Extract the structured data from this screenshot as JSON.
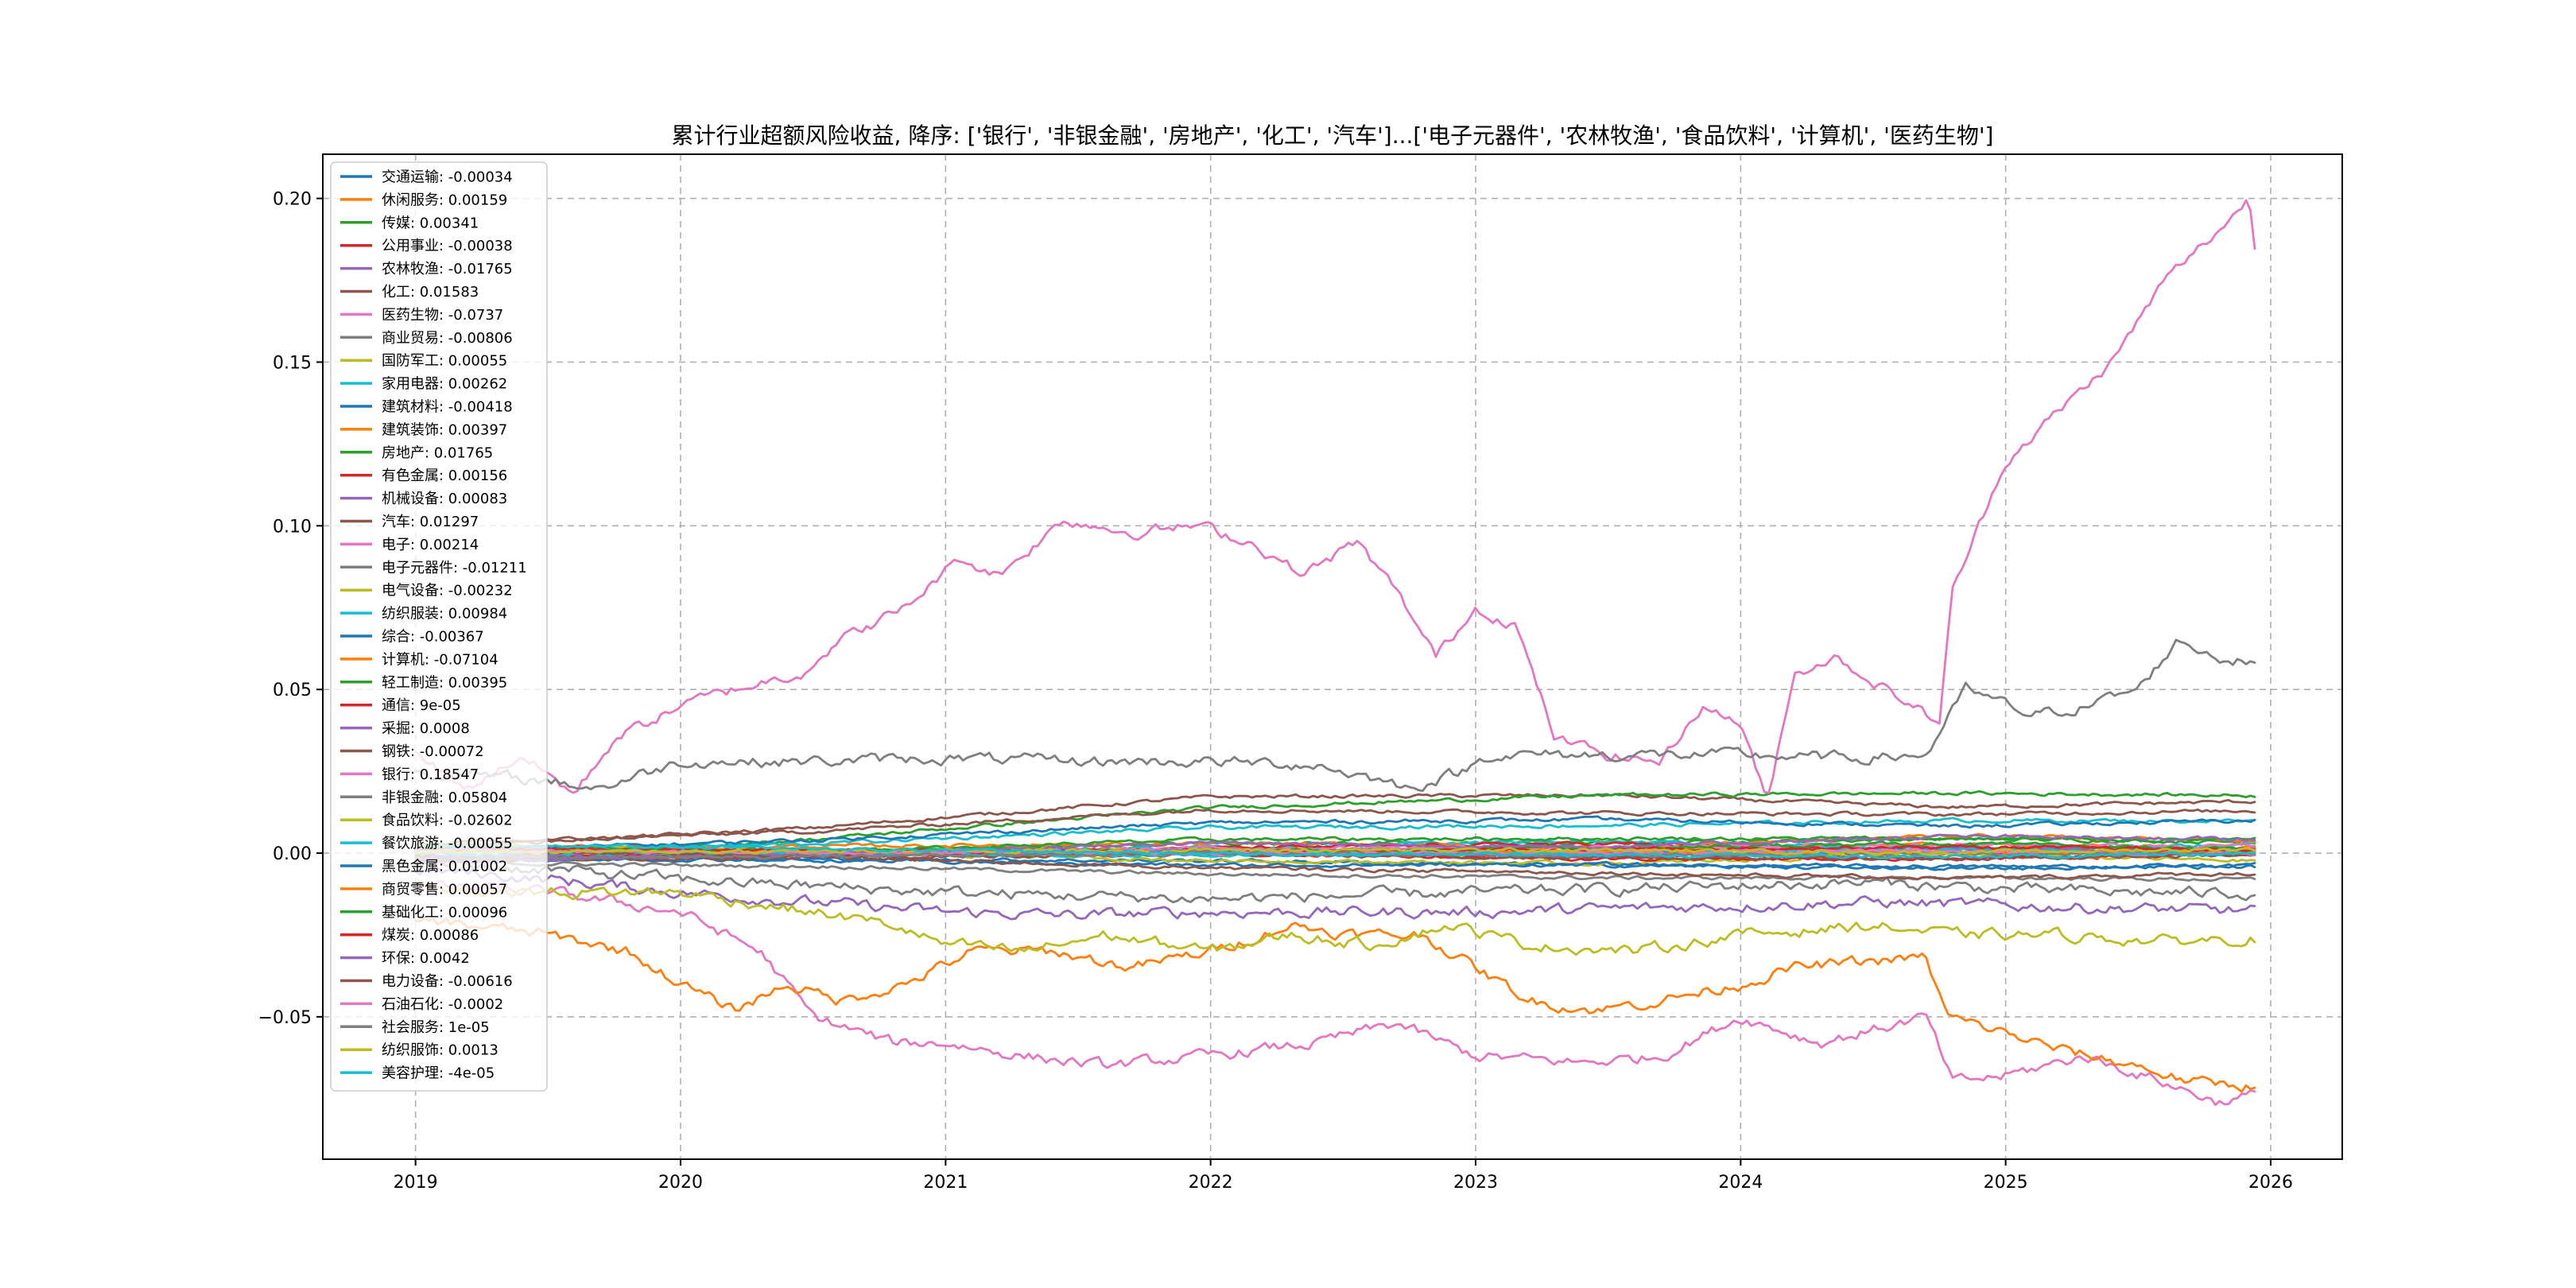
{
  "chart_data": {
    "type": "line",
    "title": "累计行业超额风险收益,  降序: ['银行', '非银金融', '房地产', '化工', '汽车']...['电子元器件', '农林牧渔', '食品饮料', '计算机', '医药生物']",
    "xlabel": "",
    "ylabel": "",
    "x_ticks": [
      "2019",
      "2020",
      "2021",
      "2022",
      "2023",
      "2024",
      "2025",
      "2026"
    ],
    "y_ticks": [
      "−0.05",
      "0.00",
      "0.05",
      "0.10",
      "0.15",
      "0.20"
    ],
    "xlim": [
      2018.65,
      2026.27
    ],
    "ylim": [
      -0.0935,
      0.2135
    ],
    "grid": true,
    "legend_position": "upper-left",
    "series": [
      {
        "name": "交通运输",
        "final": -0.00034,
        "color": "#1f77b4",
        "label": "交通运输: -0.00034"
      },
      {
        "name": "休闲服务",
        "final": 0.00159,
        "color": "#ff7f0e",
        "label": "休闲服务: 0.00159"
      },
      {
        "name": "传媒",
        "final": 0.00341,
        "color": "#2ca02c",
        "label": "传媒: 0.00341"
      },
      {
        "name": "公用事业",
        "final": -0.00038,
        "color": "#d62728",
        "label": "公用事业: -0.00038"
      },
      {
        "name": "农林牧渔",
        "final": -0.01765,
        "color": "#9467bd",
        "label": "农林牧渔: -0.01765"
      },
      {
        "name": "化工",
        "final": 0.01583,
        "color": "#8c564b",
        "label": "化工: 0.01583"
      },
      {
        "name": "医药生物",
        "final": -0.0737,
        "color": "#e377c2",
        "label": "医药生物: -0.0737"
      },
      {
        "name": "商业贸易",
        "final": -0.00806,
        "color": "#7f7f7f",
        "label": "商业贸易: -0.00806"
      },
      {
        "name": "国防军工",
        "final": 0.00055,
        "color": "#bcbd22",
        "label": "国防军工: 0.00055"
      },
      {
        "name": "家用电器",
        "final": 0.00262,
        "color": "#17becf",
        "label": "家用电器: 0.00262"
      },
      {
        "name": "建筑材料",
        "final": -0.00418,
        "color": "#1f77b4",
        "label": "建筑材料: -0.00418"
      },
      {
        "name": "建筑装饰",
        "final": 0.00397,
        "color": "#ff7f0e",
        "label": "建筑装饰: 0.00397"
      },
      {
        "name": "房地产",
        "final": 0.01765,
        "color": "#2ca02c",
        "label": "房地产: 0.01765"
      },
      {
        "name": "有色金属",
        "final": 0.00156,
        "color": "#d62728",
        "label": "有色金属: 0.00156"
      },
      {
        "name": "机械设备",
        "final": 0.00083,
        "color": "#9467bd",
        "label": "机械设备: 0.00083"
      },
      {
        "name": "汽车",
        "final": 0.01297,
        "color": "#8c564b",
        "label": "汽车: 0.01297"
      },
      {
        "name": "电子",
        "final": 0.00214,
        "color": "#e377c2",
        "label": "电子: 0.00214"
      },
      {
        "name": "电子元器件",
        "final": -0.01211,
        "color": "#7f7f7f",
        "label": "电子元器件: -0.01211"
      },
      {
        "name": "电气设备",
        "final": -0.00232,
        "color": "#bcbd22",
        "label": "电气设备: -0.00232"
      },
      {
        "name": "纺织服装",
        "final": 0.00984,
        "color": "#17becf",
        "label": "纺织服装: 0.00984"
      },
      {
        "name": "综合",
        "final": -0.00367,
        "color": "#1f77b4",
        "label": "综合: -0.00367"
      },
      {
        "name": "计算机",
        "final": -0.07104,
        "color": "#ff7f0e",
        "label": "计算机: -0.07104"
      },
      {
        "name": "轻工制造",
        "final": 0.00395,
        "color": "#2ca02c",
        "label": "轻工制造: 0.00395"
      },
      {
        "name": "通信",
        "final": 9e-05,
        "color": "#d62728",
        "label": "通信: 9e-05"
      },
      {
        "name": "采掘",
        "final": 0.0008,
        "color": "#9467bd",
        "label": "采掘: 0.0008"
      },
      {
        "name": "钢铁",
        "final": -0.00072,
        "color": "#8c564b",
        "label": "钢铁: -0.00072"
      },
      {
        "name": "银行",
        "final": 0.18547,
        "color": "#e377c2",
        "label": "银行: 0.18547"
      },
      {
        "name": "非银金融",
        "final": 0.05804,
        "color": "#7f7f7f",
        "label": "非银金融: 0.05804"
      },
      {
        "name": "食品饮料",
        "final": -0.02602,
        "color": "#bcbd22",
        "label": "食品饮料: -0.02602"
      },
      {
        "name": "餐饮旅游",
        "final": -0.00055,
        "color": "#17becf",
        "label": "餐饮旅游: -0.00055"
      },
      {
        "name": "黑色金属",
        "final": 0.01002,
        "color": "#1f77b4",
        "label": "黑色金属: 0.01002"
      },
      {
        "name": "商贸零售",
        "final": 0.00057,
        "color": "#ff7f0e",
        "label": "商贸零售: 0.00057"
      },
      {
        "name": "基础化工",
        "final": 0.00096,
        "color": "#2ca02c",
        "label": "基础化工: 0.00096"
      },
      {
        "name": "煤炭",
        "final": 0.00086,
        "color": "#d62728",
        "label": "煤炭: 0.00086"
      },
      {
        "name": "环保",
        "final": 0.0042,
        "color": "#9467bd",
        "label": "环保: 0.0042"
      },
      {
        "name": "电力设备",
        "final": -0.00616,
        "color": "#8c564b",
        "label": "电力设备: -0.00616"
      },
      {
        "name": "石油石化",
        "final": -0.0002,
        "color": "#e377c2",
        "label": "石油石化: -0.0002"
      },
      {
        "name": "社会服务",
        "final": 1e-05,
        "color": "#7f7f7f",
        "label": "社会服务: 1e-05"
      },
      {
        "name": "纺织服饰",
        "final": 0.0013,
        "color": "#bcbd22",
        "label": "纺织服饰: 0.0013"
      },
      {
        "name": "美容护理",
        "final": -4e-05,
        "color": "#17becf",
        "label": "美容护理: -4e-05"
      }
    ],
    "key_paths": {
      "银行": [
        [
          2019.0,
          0.03
        ],
        [
          2019.2,
          0.02
        ],
        [
          2019.4,
          0.03
        ],
        [
          2019.6,
          0.018
        ],
        [
          2019.75,
          0.035
        ],
        [
          2020.0,
          0.045
        ],
        [
          2020.2,
          0.05
        ],
        [
          2020.45,
          0.055
        ],
        [
          2020.6,
          0.065
        ],
        [
          2020.85,
          0.075
        ],
        [
          2021.05,
          0.09
        ],
        [
          2021.2,
          0.085
        ],
        [
          2021.45,
          0.102
        ],
        [
          2021.7,
          0.098
        ],
        [
          2021.95,
          0.1
        ],
        [
          2022.15,
          0.095
        ],
        [
          2022.35,
          0.085
        ],
        [
          2022.55,
          0.095
        ],
        [
          2022.7,
          0.08
        ],
        [
          2022.85,
          0.06
        ],
        [
          2023.0,
          0.075
        ],
        [
          2023.15,
          0.07
        ],
        [
          2023.3,
          0.035
        ],
        [
          2023.5,
          0.03
        ],
        [
          2023.7,
          0.028
        ],
        [
          2023.85,
          0.045
        ],
        [
          2024.0,
          0.04
        ],
        [
          2024.1,
          0.015
        ],
        [
          2024.2,
          0.055
        ],
        [
          2024.35,
          0.06
        ],
        [
          2024.55,
          0.05
        ],
        [
          2024.75,
          0.04
        ],
        [
          2024.8,
          0.08
        ],
        [
          2025.0,
          0.12
        ],
        [
          2025.2,
          0.135
        ],
        [
          2025.4,
          0.15
        ],
        [
          2025.6,
          0.175
        ],
        [
          2025.8,
          0.19
        ],
        [
          2025.92,
          0.2
        ],
        [
          2025.94,
          0.185
        ]
      ],
      "非银金融": [
        [
          2019.0,
          0.025
        ],
        [
          2019.5,
          0.022
        ],
        [
          2019.7,
          0.02
        ],
        [
          2020.0,
          0.028
        ],
        [
          2020.5,
          0.028
        ],
        [
          2021.0,
          0.029
        ],
        [
          2021.5,
          0.028
        ],
        [
          2022.0,
          0.028
        ],
        [
          2022.4,
          0.027
        ],
        [
          2022.6,
          0.023
        ],
        [
          2022.75,
          0.02
        ],
        [
          2022.95,
          0.025
        ],
        [
          2023.05,
          0.03
        ],
        [
          2023.5,
          0.03
        ],
        [
          2024.0,
          0.03
        ],
        [
          2024.4,
          0.029
        ],
        [
          2024.7,
          0.03
        ],
        [
          2024.85,
          0.05
        ],
        [
          2025.1,
          0.042
        ],
        [
          2025.3,
          0.045
        ],
        [
          2025.5,
          0.05
        ],
        [
          2025.65,
          0.065
        ],
        [
          2025.8,
          0.06
        ],
        [
          2025.94,
          0.058
        ]
      ],
      "计算机": [
        [
          2019.0,
          -0.02
        ],
        [
          2019.5,
          -0.025
        ],
        [
          2019.8,
          -0.03
        ],
        [
          2020.0,
          -0.04
        ],
        [
          2020.2,
          -0.048
        ],
        [
          2020.4,
          -0.04
        ],
        [
          2020.6,
          -0.045
        ],
        [
          2020.85,
          -0.04
        ],
        [
          2021.1,
          -0.03
        ],
        [
          2021.4,
          -0.03
        ],
        [
          2021.7,
          -0.035
        ],
        [
          2022.0,
          -0.03
        ],
        [
          2022.3,
          -0.022
        ],
        [
          2022.55,
          -0.025
        ],
        [
          2022.8,
          -0.025
        ],
        [
          2023.0,
          -0.035
        ],
        [
          2023.2,
          -0.045
        ],
        [
          2023.45,
          -0.048
        ],
        [
          2023.7,
          -0.045
        ],
        [
          2024.0,
          -0.04
        ],
        [
          2024.2,
          -0.035
        ],
        [
          2024.5,
          -0.033
        ],
        [
          2024.7,
          -0.032
        ],
        [
          2024.78,
          -0.05
        ],
        [
          2025.0,
          -0.055
        ],
        [
          2025.2,
          -0.06
        ],
        [
          2025.5,
          -0.065
        ],
        [
          2025.7,
          -0.07
        ],
        [
          2025.94,
          -0.071
        ]
      ],
      "医药生物": [
        [
          2019.0,
          -0.01
        ],
        [
          2019.5,
          -0.012
        ],
        [
          2020.0,
          -0.018
        ],
        [
          2020.3,
          -0.03
        ],
        [
          2020.5,
          -0.05
        ],
        [
          2020.8,
          -0.058
        ],
        [
          2021.0,
          -0.058
        ],
        [
          2021.3,
          -0.062
        ],
        [
          2021.6,
          -0.065
        ],
        [
          2022.0,
          -0.062
        ],
        [
          2022.4,
          -0.058
        ],
        [
          2022.7,
          -0.052
        ],
        [
          2023.0,
          -0.062
        ],
        [
          2023.4,
          -0.064
        ],
        [
          2023.7,
          -0.062
        ],
        [
          2024.0,
          -0.05
        ],
        [
          2024.3,
          -0.058
        ],
        [
          2024.7,
          -0.05
        ],
        [
          2024.8,
          -0.07
        ],
        [
          2025.0,
          -0.068
        ],
        [
          2025.3,
          -0.062
        ],
        [
          2025.6,
          -0.07
        ],
        [
          2025.8,
          -0.076
        ],
        [
          2025.94,
          -0.074
        ]
      ],
      "食品饮料": [
        [
          2019.0,
          -0.01
        ],
        [
          2019.5,
          -0.012
        ],
        [
          2020.0,
          -0.012
        ],
        [
          2020.5,
          -0.018
        ],
        [
          2020.8,
          -0.022
        ],
        [
          2021.0,
          -0.028
        ],
        [
          2021.3,
          -0.03
        ],
        [
          2021.6,
          -0.025
        ],
        [
          2022.0,
          -0.03
        ],
        [
          2022.3,
          -0.025
        ],
        [
          2022.6,
          -0.028
        ],
        [
          2022.9,
          -0.022
        ],
        [
          2023.2,
          -0.028
        ],
        [
          2023.6,
          -0.03
        ],
        [
          2024.0,
          -0.025
        ],
        [
          2024.5,
          -0.022
        ],
        [
          2024.8,
          -0.025
        ],
        [
          2025.2,
          -0.025
        ],
        [
          2025.6,
          -0.027
        ],
        [
          2025.94,
          -0.026
        ]
      ],
      "农林牧渔": [
        [
          2019.0,
          -0.005
        ],
        [
          2019.5,
          -0.008
        ],
        [
          2020.0,
          -0.012
        ],
        [
          2020.5,
          -0.015
        ],
        [
          2021.0,
          -0.018
        ],
        [
          2021.5,
          -0.019
        ],
        [
          2022.0,
          -0.018
        ],
        [
          2022.5,
          -0.018
        ],
        [
          2023.0,
          -0.018
        ],
        [
          2023.5,
          -0.017
        ],
        [
          2024.0,
          -0.016
        ],
        [
          2024.5,
          -0.015
        ],
        [
          2025.0,
          -0.016
        ],
        [
          2025.5,
          -0.017
        ],
        [
          2025.94,
          -0.0177
        ]
      ],
      "电子元器件": [
        [
          2019.0,
          -0.003
        ],
        [
          2019.5,
          -0.005
        ],
        [
          2020.0,
          -0.008
        ],
        [
          2020.5,
          -0.01
        ],
        [
          2021.0,
          -0.012
        ],
        [
          2021.5,
          -0.013
        ],
        [
          2022.0,
          -0.014
        ],
        [
          2022.5,
          -0.013
        ],
        [
          2023.0,
          -0.012
        ],
        [
          2023.5,
          -0.011
        ],
        [
          2024.0,
          -0.01
        ],
        [
          2024.5,
          -0.009
        ],
        [
          2025.0,
          -0.011
        ],
        [
          2025.5,
          -0.012
        ],
        [
          2025.94,
          -0.0121
        ]
      ]
    }
  }
}
